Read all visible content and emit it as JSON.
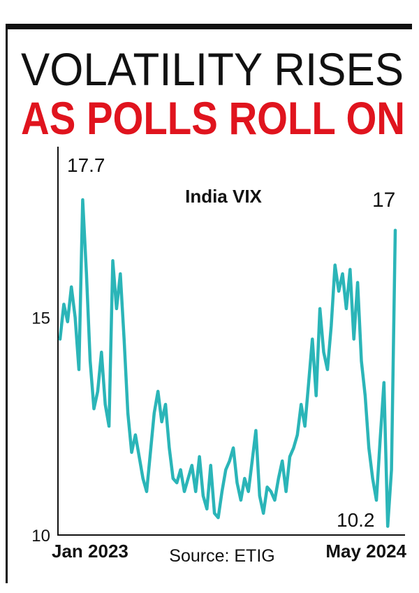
{
  "chart_data": {
    "type": "line",
    "title": [
      "VOLATILITY RISES",
      "AS POLLS ROLL ON"
    ],
    "subtitle": "India VIX",
    "source": "Source: ETIG",
    "annotations": [
      "17.7",
      "17",
      "10.2"
    ],
    "categories": [
      "Jan 2023",
      null,
      null,
      null,
      null,
      null,
      null,
      null,
      null,
      null,
      null,
      null,
      null,
      null,
      null,
      null,
      null,
      null,
      null,
      null,
      null,
      null,
      null,
      null,
      null,
      null,
      null,
      null,
      null,
      null,
      null,
      null,
      null,
      null,
      null,
      null,
      null,
      null,
      null,
      null,
      null,
      null,
      null,
      null,
      null,
      null,
      null,
      null,
      null,
      null,
      null,
      null,
      null,
      null,
      null,
      null,
      null,
      null,
      null,
      null,
      null,
      null,
      null,
      null,
      null,
      null,
      null,
      null,
      null,
      null,
      null,
      null,
      null,
      null,
      null,
      null,
      null,
      null,
      null,
      null,
      null,
      null,
      null,
      null,
      null,
      null,
      null,
      null,
      null,
      "May 2024"
    ],
    "values": [
      14.5,
      15.3,
      14.9,
      15.7,
      15.0,
      13.8,
      17.7,
      16.0,
      14.0,
      12.9,
      13.3,
      14.2,
      13.0,
      12.5,
      16.3,
      15.2,
      16.0,
      14.5,
      12.8,
      11.9,
      12.3,
      11.8,
      11.3,
      11.0,
      11.9,
      12.8,
      13.3,
      12.6,
      13.0,
      12.0,
      11.3,
      11.2,
      11.5,
      11.0,
      11.3,
      11.6,
      11.0,
      11.8,
      10.9,
      10.6,
      11.6,
      10.5,
      10.4,
      11.0,
      11.5,
      11.7,
      12.0,
      11.2,
      10.8,
      11.3,
      11.0,
      11.7,
      12.4,
      10.9,
      10.5,
      11.1,
      11.0,
      10.8,
      11.3,
      11.7,
      11.0,
      11.8,
      12.0,
      12.3,
      13.0,
      12.5,
      13.5,
      14.5,
      13.2,
      15.2,
      14.2,
      13.8,
      14.8,
      16.2,
      15.6,
      16.0,
      15.2,
      16.1,
      14.5,
      15.8,
      14.0,
      13.2,
      12.0,
      11.3,
      10.8,
      12.2,
      13.5,
      10.2,
      11.5,
      17.0
    ],
    "color": "#2bb5b8",
    "ylim": [
      10,
      19
    ],
    "yticks": [
      10,
      15
    ],
    "grid": false
  }
}
